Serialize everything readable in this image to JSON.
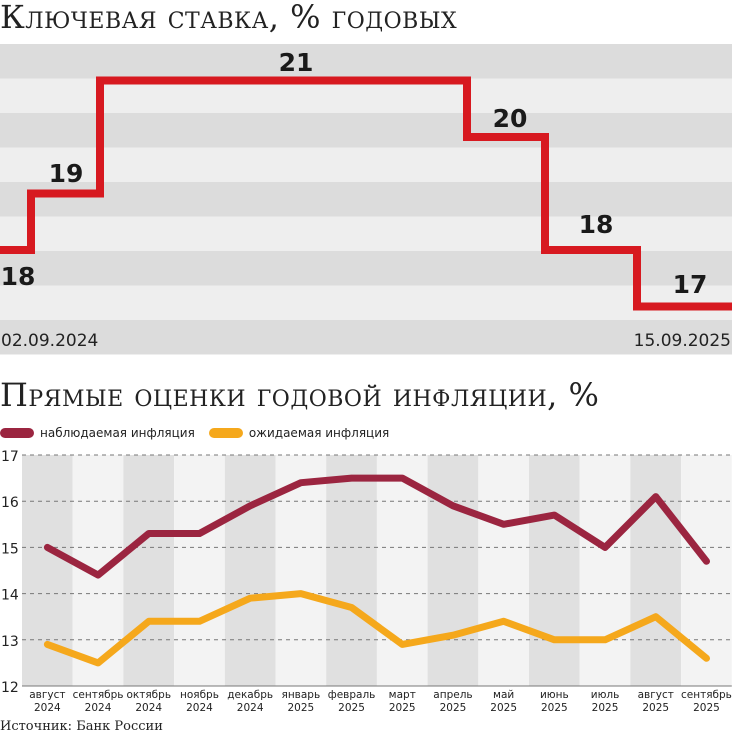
{
  "chart_data": [
    {
      "type": "line",
      "title": "Ключевая ставка, % годовых",
      "step": true,
      "x_start_label": "02.09.2024",
      "x_end_label": "15.09.2025",
      "value_labels": [
        "18",
        "19",
        "21",
        "20",
        "18",
        "17"
      ],
      "values": [
        18,
        19,
        21,
        20,
        18,
        17
      ],
      "colors": {
        "line": "#d71920",
        "band_dark": "#dcdcdc",
        "band_light": "#eeeeee"
      }
    },
    {
      "type": "line",
      "title": "Прямые оценки годовой инфляции, %",
      "categories": [
        [
          "август",
          "2024"
        ],
        [
          "сентябрь",
          "2024"
        ],
        [
          "октябрь",
          "2024"
        ],
        [
          "ноябрь",
          "2024"
        ],
        [
          "декабрь",
          "2024"
        ],
        [
          "январь",
          "2025"
        ],
        [
          "февраль",
          "2025"
        ],
        [
          "март",
          "2025"
        ],
        [
          "апрель",
          "2025"
        ],
        [
          "май",
          "2025"
        ],
        [
          "июнь",
          "2025"
        ],
        [
          "июль",
          "2025"
        ],
        [
          "август",
          "2025"
        ],
        [
          "сентябрь",
          "2025"
        ]
      ],
      "y_ticks": [
        "12",
        "13",
        "14",
        "15",
        "16",
        "17"
      ],
      "ylim": [
        12,
        17
      ],
      "series": [
        {
          "name": "наблюдаемая инфляция",
          "color": "#9b2540",
          "values": [
            15.0,
            14.4,
            15.3,
            15.3,
            15.9,
            16.4,
            16.5,
            16.5,
            15.9,
            15.5,
            15.7,
            15.0,
            16.1,
            14.7
          ]
        },
        {
          "name": "ожидаемая инфляция",
          "color": "#f5a81c",
          "values": [
            12.9,
            12.5,
            13.4,
            13.4,
            13.9,
            14.0,
            13.7,
            12.9,
            13.1,
            13.4,
            13.0,
            13.0,
            13.5,
            12.6
          ]
        }
      ],
      "grid": true,
      "legend": "top-left",
      "colors": {
        "band_dark": "#e0e0e0",
        "band_light": "#f3f3f3",
        "grid": "#777777"
      }
    }
  ],
  "source": "Источник: Банк России"
}
